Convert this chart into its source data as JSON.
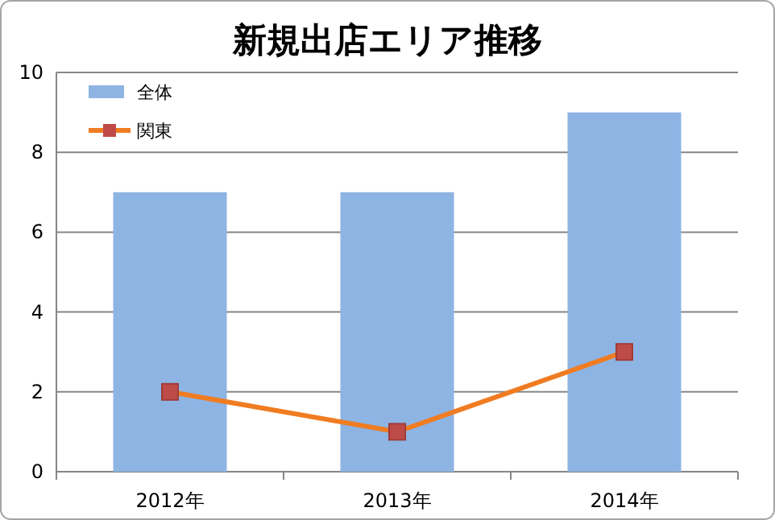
{
  "chart_data": {
    "type": "bar",
    "title": "新規出店エリア推移",
    "categories": [
      "2012年",
      "2013年",
      "2014年"
    ],
    "series": [
      {
        "name": "全体",
        "color": "#8eb4e3",
        "values": [
          7,
          7,
          9
        ]
      },
      {
        "name": "関東",
        "type": "line",
        "color": "#f07c22",
        "marker": "square",
        "values": [
          2,
          1,
          3
        ]
      }
    ],
    "ylim": [
      0,
      10
    ],
    "yticks": [
      0,
      2,
      4,
      6,
      8,
      10
    ],
    "grid": "y",
    "legend": "top left"
  }
}
